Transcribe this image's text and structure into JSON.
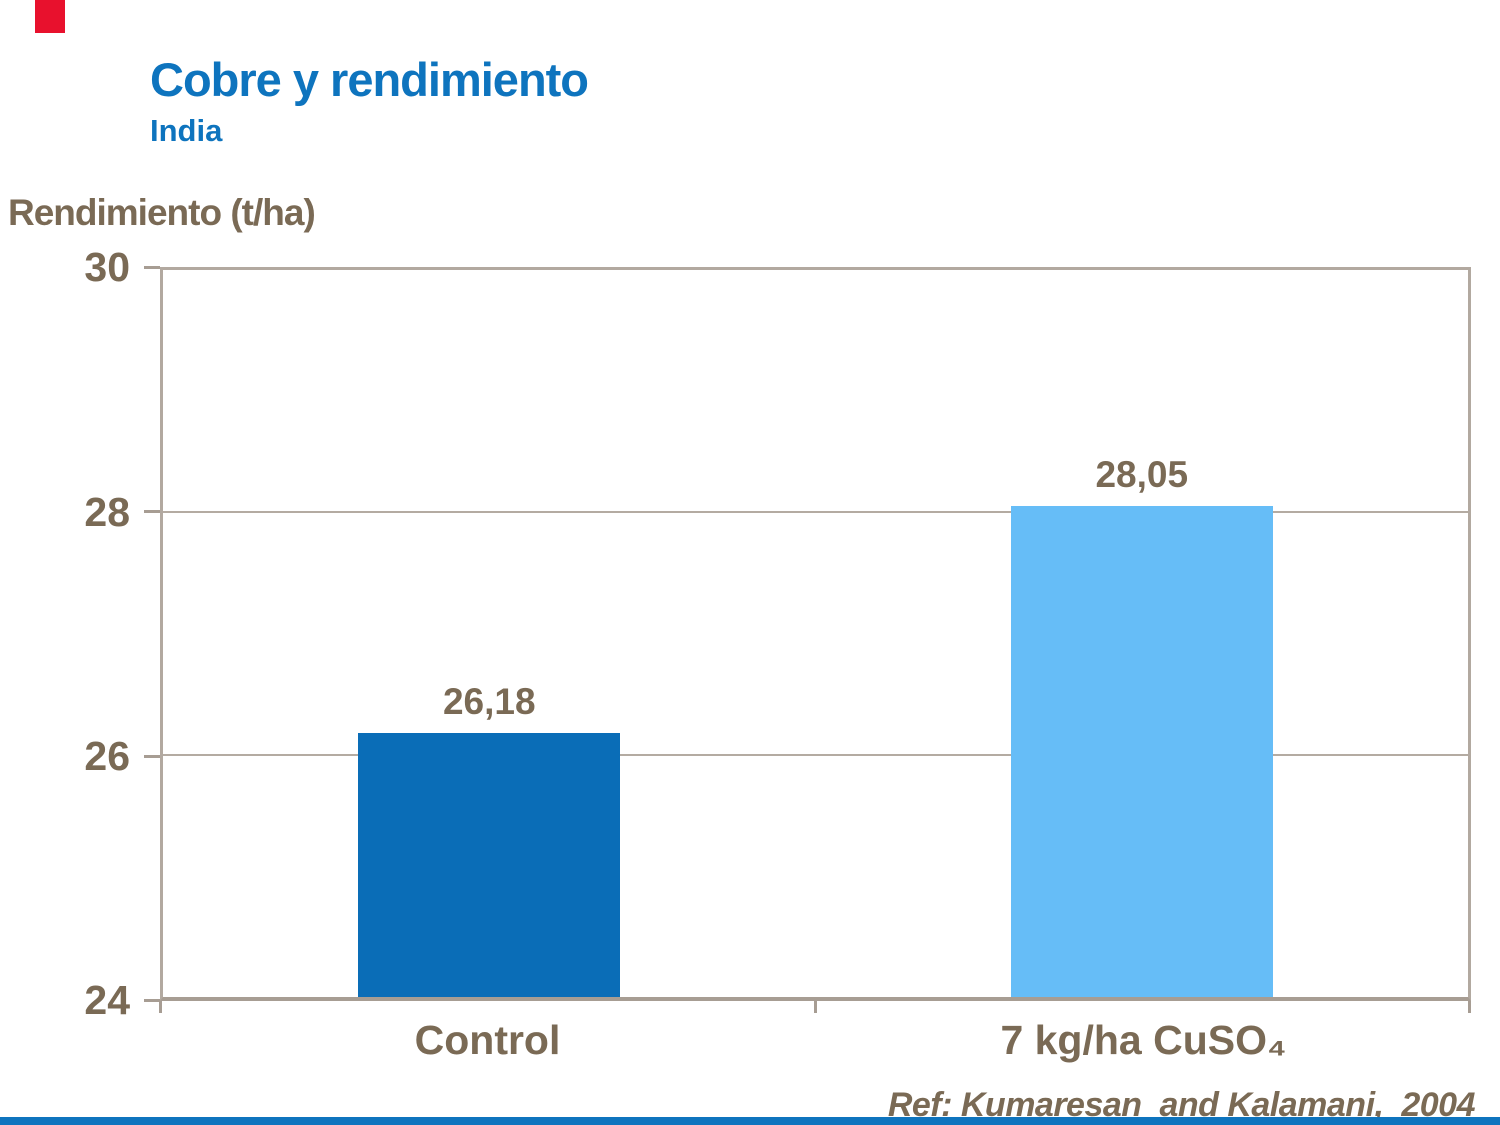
{
  "slide": {
    "title": "Cobre y rendimiento",
    "subtitle": "India",
    "reference": "Ref: Kumaresan  and Kalamani,  2004",
    "accent_red": "#e8112d",
    "accent_blue": "#0e74be",
    "title_color": "#0e74be",
    "text_brown": "#7a6a55"
  },
  "chart_data": {
    "type": "bar",
    "title": "Cobre y rendimiento — India",
    "ylabel": "Rendimiento (t/ha)",
    "xlabel": "",
    "categories": [
      "Control",
      "7 kg/ha CuSO₄"
    ],
    "values": [
      26.18,
      28.05
    ],
    "value_labels": [
      "26,18",
      "28,05"
    ],
    "bar_colors": [
      "#0a6db7",
      "#66bdf7"
    ],
    "ylim": [
      24,
      30
    ],
    "yticks": [
      "30",
      "28",
      "26",
      "24"
    ],
    "grid": true,
    "legend_position": "none",
    "axis_color": "#b2a9a0"
  }
}
